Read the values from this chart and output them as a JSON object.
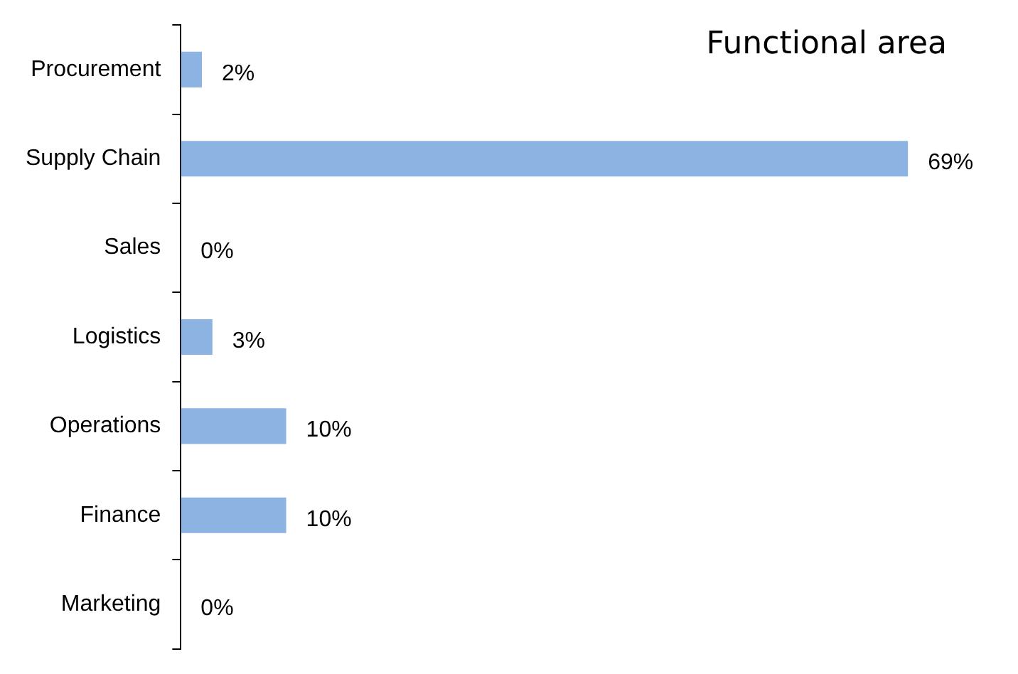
{
  "chart_data": {
    "type": "bar",
    "orientation": "horizontal",
    "title": "Functional area",
    "categories": [
      "Procurement",
      "Supply Chain",
      "Sales",
      "Logistics",
      "Operations",
      "Finance",
      "Marketing"
    ],
    "values": [
      2,
      69,
      0,
      3,
      10,
      10,
      0
    ],
    "value_labels": [
      "2%",
      "69%",
      "0%",
      "3%",
      "10%",
      "10%",
      "0%"
    ],
    "color": "#8db3e2",
    "grid": false,
    "legend": false
  }
}
